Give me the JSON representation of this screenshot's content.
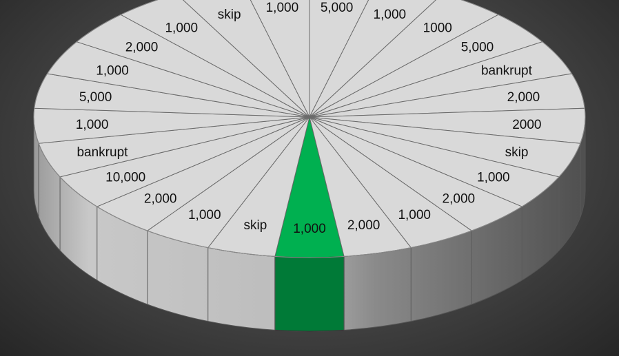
{
  "wheel": {
    "highlighted_index": 0,
    "colors": {
      "face": "#d9d9d9",
      "face_highlight": "#00b050",
      "side_highlight": "#007a37",
      "lines": "#6b6b6b",
      "background": "#3a3a3a"
    },
    "segments": [
      {
        "label": "1,000"
      },
      {
        "label": "skip"
      },
      {
        "label": "1,000"
      },
      {
        "label": "2,000"
      },
      {
        "label": "10,000"
      },
      {
        "label": "bankrupt"
      },
      {
        "label": "1,000"
      },
      {
        "label": "5,000"
      },
      {
        "label": "1,000"
      },
      {
        "label": "2,000"
      },
      {
        "label": "1,000"
      },
      {
        "label": "skip"
      },
      {
        "label": "1,000"
      },
      {
        "label": "5,000"
      },
      {
        "label": "1,000"
      },
      {
        "label": "1000"
      },
      {
        "label": "5,000"
      },
      {
        "label": "bankrupt"
      },
      {
        "label": "2,000"
      },
      {
        "label": "2000"
      },
      {
        "label": "skip"
      },
      {
        "label": "1,000"
      },
      {
        "label": "2,000"
      },
      {
        "label": "1,000"
      },
      {
        "label": "2,000"
      }
    ]
  }
}
